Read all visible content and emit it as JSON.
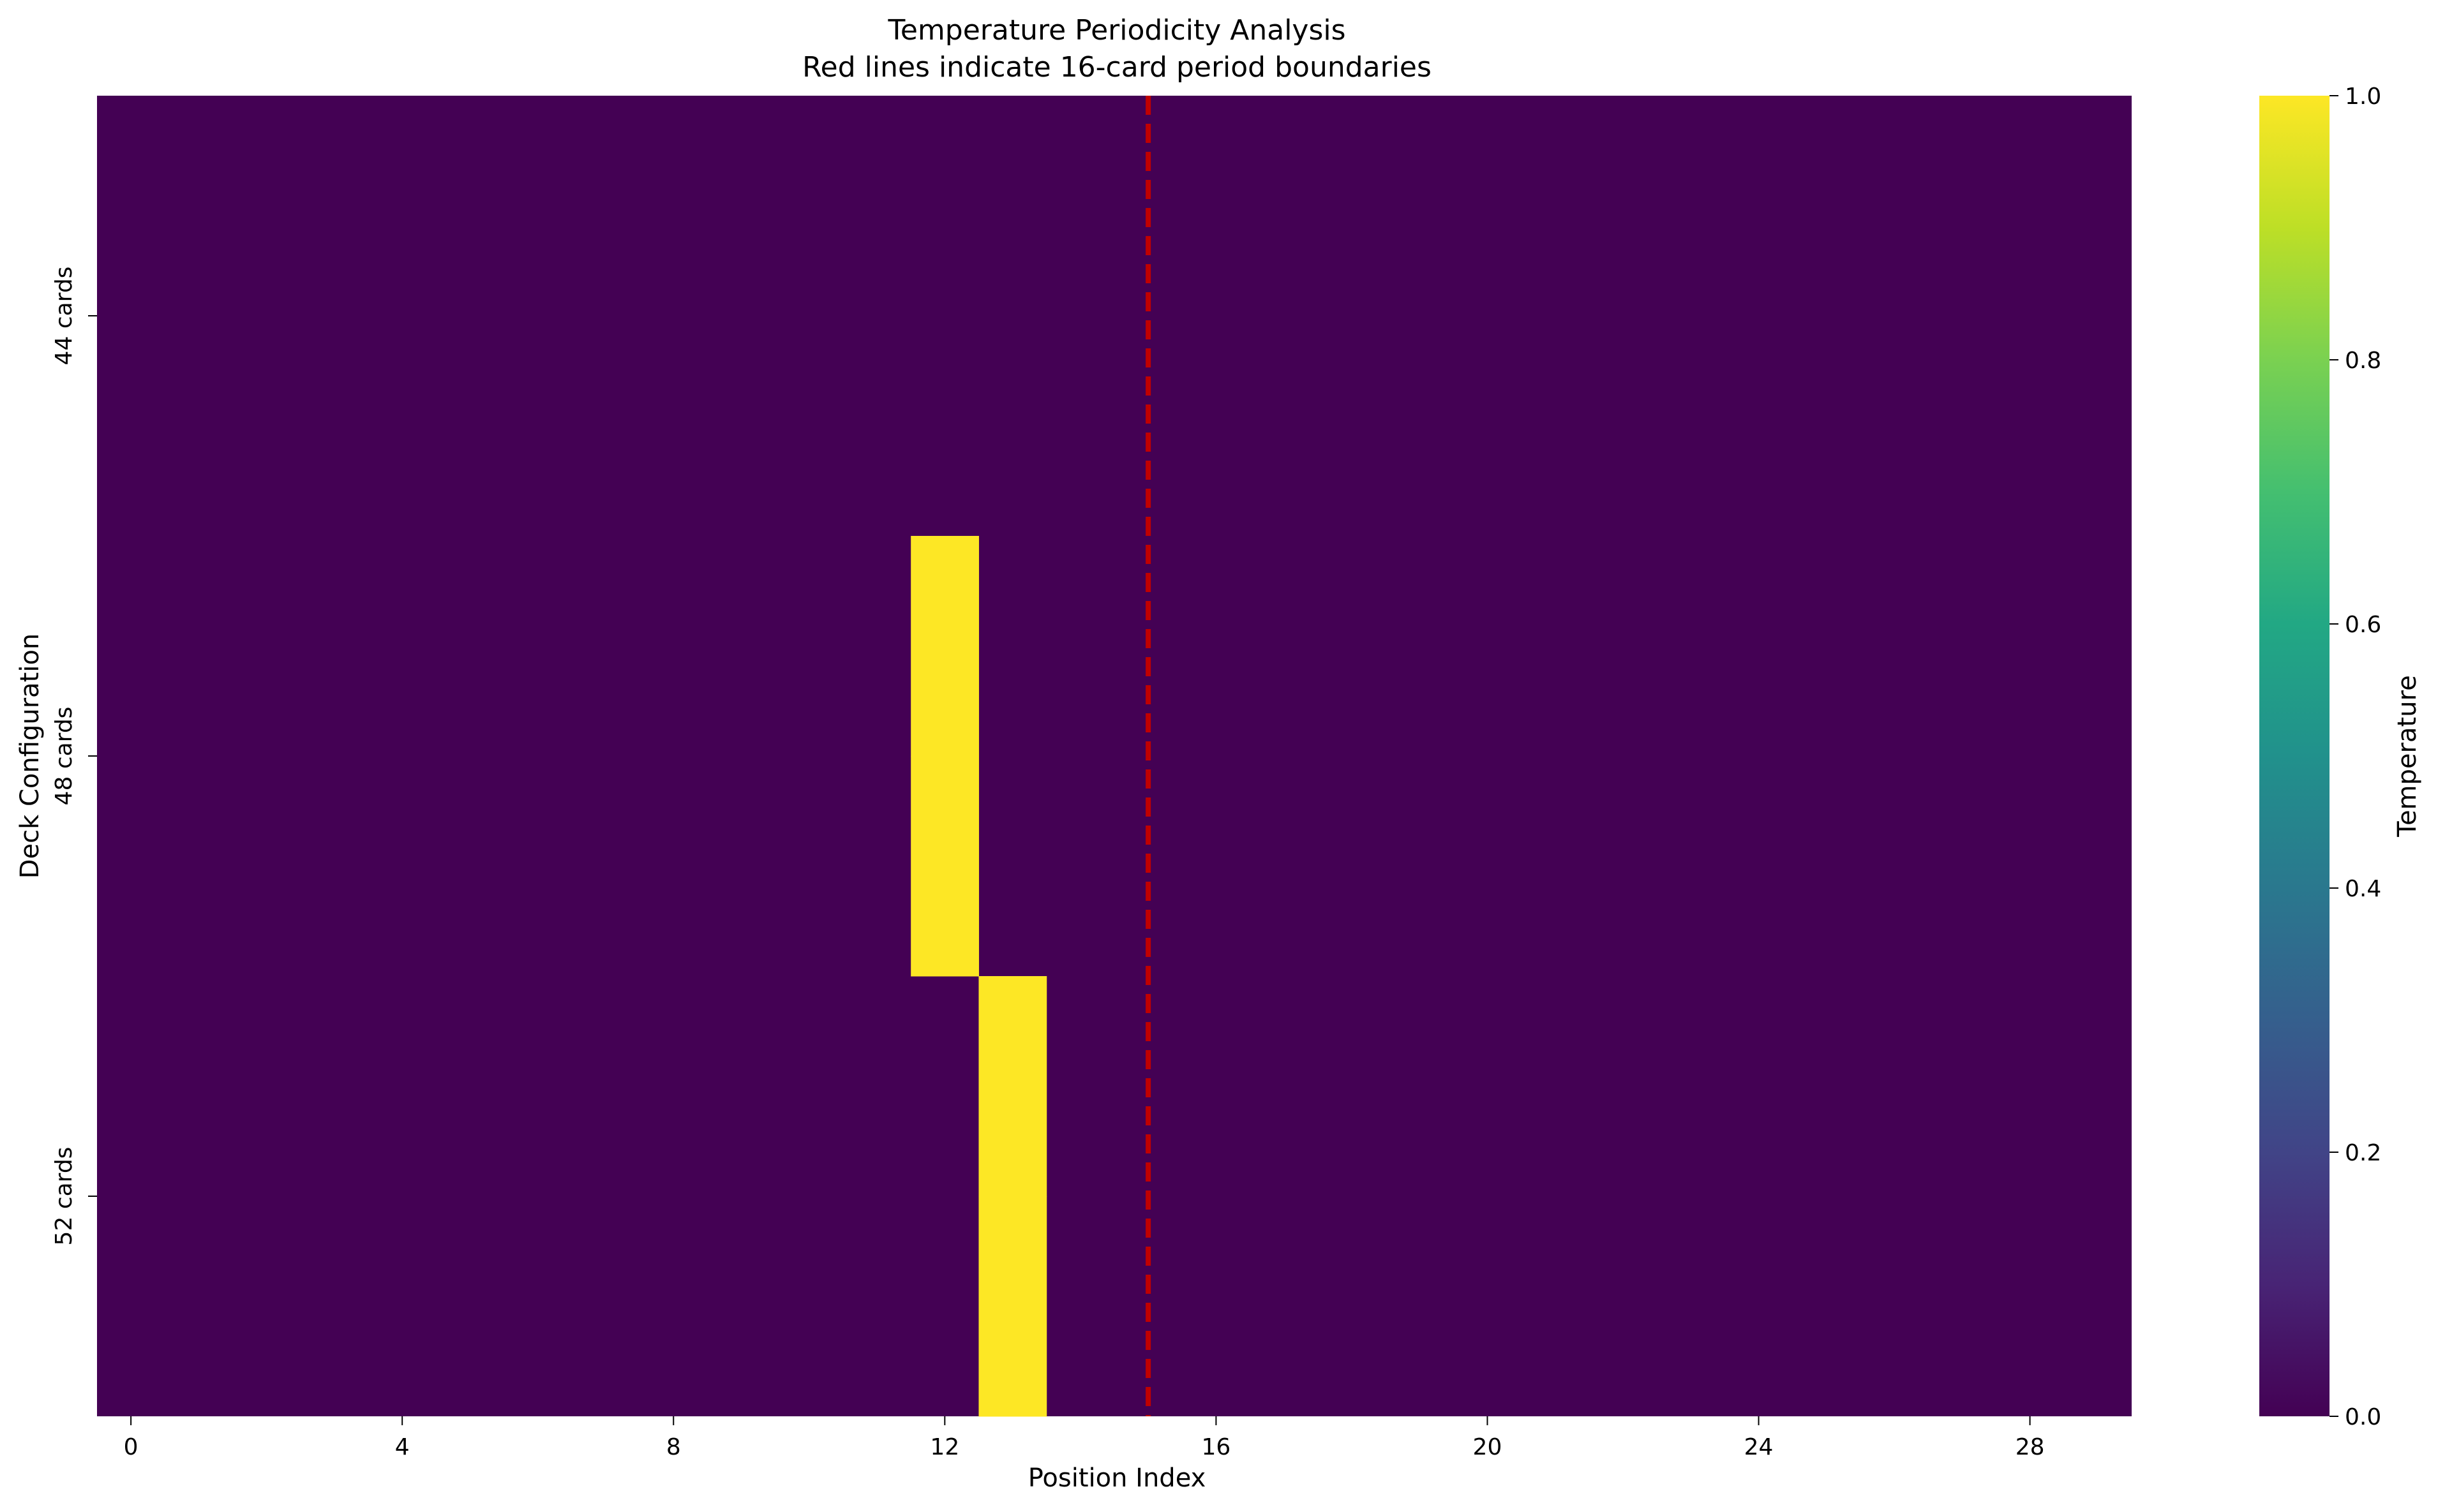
{
  "chart_data": {
    "type": "heatmap",
    "title": "Temperature Periodicity Analysis",
    "subtitle": "Red lines indicate 16-card period boundaries",
    "xlabel": "Position Index",
    "ylabel": "Deck Configuration",
    "x_count": 30,
    "x_tick_labels": [
      "0",
      "4",
      "8",
      "12",
      "16",
      "20",
      "24",
      "28"
    ],
    "x_tick_step": 4,
    "rows": [
      "44 cards",
      "48 cards",
      "52 cards"
    ],
    "row_bands": [
      2,
      2,
      2
    ],
    "grid": [
      [
        0,
        0,
        0,
        0,
        0,
        0,
        0,
        0,
        0,
        0,
        0,
        0,
        0,
        0,
        0,
        0,
        0,
        0,
        0,
        0,
        0,
        0,
        0,
        0,
        0,
        0,
        0,
        0,
        0,
        0
      ],
      [
        0,
        0,
        0,
        0,
        0,
        0,
        0,
        0,
        0,
        0,
        0,
        0,
        0,
        0,
        0,
        0,
        0,
        0,
        0,
        0,
        0,
        0,
        0,
        0,
        0,
        0,
        0,
        0,
        0,
        0
      ],
      [
        0,
        0,
        0,
        0,
        0,
        0,
        0,
        0,
        0,
        0,
        0,
        0,
        1,
        0,
        0,
        0,
        0,
        0,
        0,
        0,
        0,
        0,
        0,
        0,
        0,
        0,
        0,
        0,
        0,
        0
      ],
      [
        0,
        0,
        0,
        0,
        0,
        0,
        0,
        0,
        0,
        0,
        0,
        0,
        1,
        0,
        0,
        0,
        0,
        0,
        0,
        0,
        0,
        0,
        0,
        0,
        0,
        0,
        0,
        0,
        0,
        0
      ],
      [
        0,
        0,
        0,
        0,
        0,
        0,
        0,
        0,
        0,
        0,
        0,
        0,
        0,
        1,
        0,
        0,
        0,
        0,
        0,
        0,
        0,
        0,
        0,
        0,
        0,
        0,
        0,
        0,
        0,
        0
      ],
      [
        0,
        0,
        0,
        0,
        0,
        0,
        0,
        0,
        0,
        0,
        0,
        0,
        0,
        1,
        0,
        0,
        0,
        0,
        0,
        0,
        0,
        0,
        0,
        0,
        0,
        0,
        0,
        0,
        0,
        0
      ]
    ],
    "period_boundaries": [
      15.5
    ],
    "colorbar": {
      "label": "Temperature",
      "min": 0.0,
      "max": 1.0,
      "ticks": [
        "0.0",
        "0.2",
        "0.4",
        "0.6",
        "0.8",
        "1.0"
      ],
      "colormap": "viridis"
    },
    "colors": {
      "low": "#440154",
      "high": "#fde725",
      "boundary": "#c00000"
    }
  }
}
